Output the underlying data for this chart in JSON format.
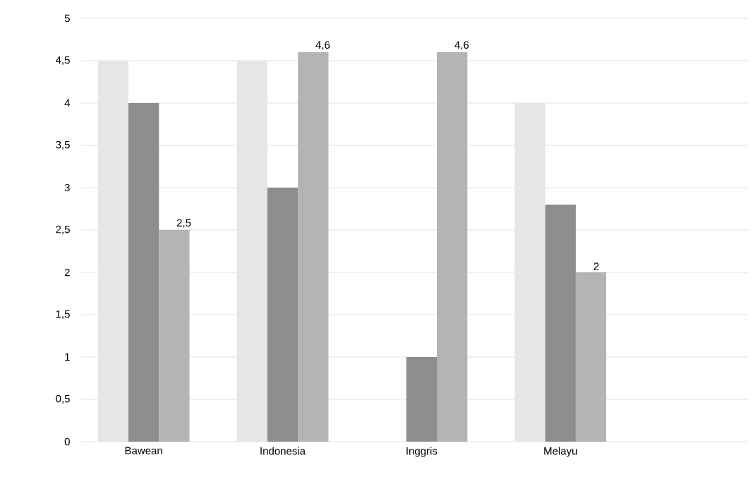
{
  "chart_data": {
    "type": "bar",
    "categories": [
      "Bawean",
      "Indonesia",
      "Inggris",
      "Melayu"
    ],
    "series": [
      {
        "color": "#e6e6e6",
        "values": [
          4.5,
          4.5,
          0,
          4
        ]
      },
      {
        "color": "#8e8e8e",
        "values": [
          4,
          3,
          1,
          2.8
        ]
      },
      {
        "color": "#b4b4b4",
        "values": [
          2.5,
          4.6,
          4.6,
          2
        ],
        "value_labels": [
          "2,5",
          "4,6",
          "4,6",
          "2"
        ]
      }
    ],
    "ylim": [
      0,
      5
    ],
    "yticks": [
      0,
      {
        "value": 0.5,
        "label": "0,5"
      },
      1,
      {
        "value": 1.5,
        "label": "1,5"
      },
      2,
      {
        "value": 2.5,
        "label": "2,5"
      },
      3,
      {
        "value": 3.5,
        "label": "3,5"
      },
      4,
      {
        "value": 4.5,
        "label": "4,5"
      },
      5
    ],
    "grid": "y"
  }
}
